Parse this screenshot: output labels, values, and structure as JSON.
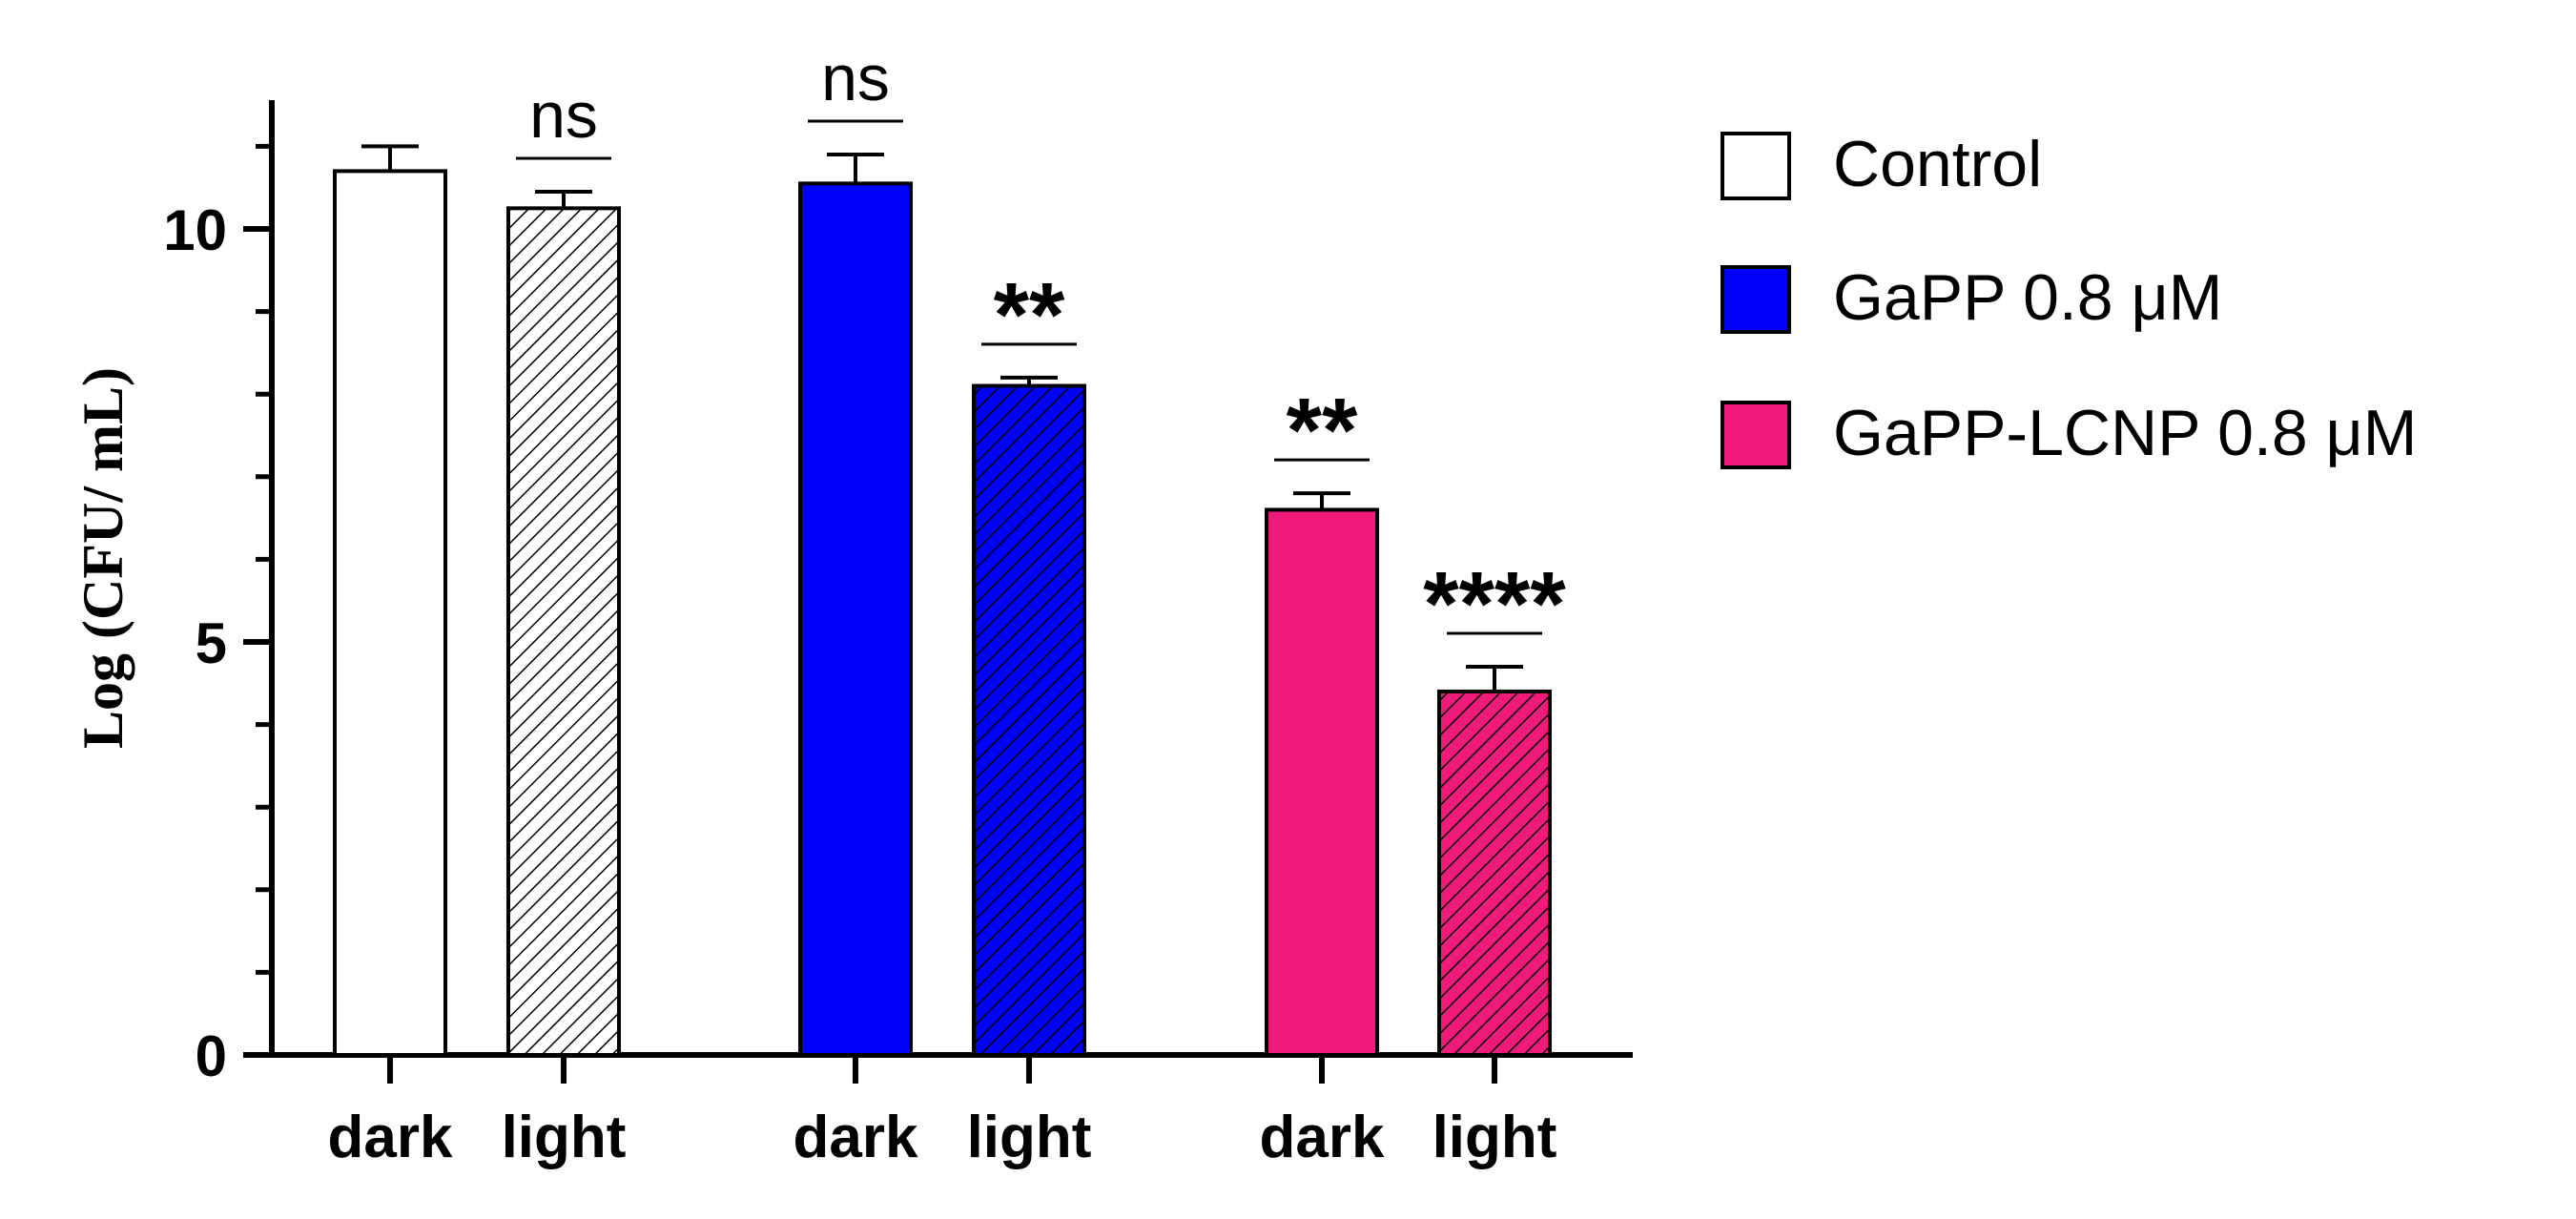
{
  "chart_data": {
    "type": "bar",
    "title": "",
    "ylabel": "Log (CFU/ mL)",
    "ylim": [
      0,
      11.5
    ],
    "yticks": [
      0,
      5,
      10
    ],
    "tick_labels": [
      "0",
      "5",
      "10"
    ],
    "x_labels": [
      "dark",
      "light",
      "dark",
      "light",
      "dark",
      "light"
    ],
    "legend": {
      "position": "right",
      "entries": [
        {
          "name": "Control",
          "color": "#ffffff"
        },
        {
          "name": "GaPP 0.8 μM",
          "color": "#0000ff"
        },
        {
          "name": "GaPP-LCNP 0.8 μM",
          "color": "#f01a7a"
        }
      ]
    },
    "bars": [
      {
        "group": "Control",
        "condition": "dark",
        "value": 10.7,
        "error": 0.3,
        "hatched": false,
        "color": "#ffffff",
        "significance": ""
      },
      {
        "group": "Control",
        "condition": "light",
        "value": 10.25,
        "error": 0.2,
        "hatched": true,
        "color": "#ffffff",
        "significance": "ns"
      },
      {
        "group": "GaPP 0.8 μM",
        "condition": "dark",
        "value": 10.55,
        "error": 0.35,
        "hatched": false,
        "color": "#0000ff",
        "significance": "ns"
      },
      {
        "group": "GaPP 0.8 μM",
        "condition": "light",
        "value": 8.1,
        "error": 0.1,
        "hatched": true,
        "color": "#0000ff",
        "significance": "**"
      },
      {
        "group": "GaPP-LCNP 0.8 μM",
        "condition": "dark",
        "value": 6.6,
        "error": 0.2,
        "hatched": false,
        "color": "#f01a7a",
        "significance": "**"
      },
      {
        "group": "GaPP-LCNP 0.8 μM",
        "condition": "light",
        "value": 4.4,
        "error": 0.3,
        "hatched": true,
        "color": "#f01a7a",
        "significance": "****"
      }
    ]
  }
}
